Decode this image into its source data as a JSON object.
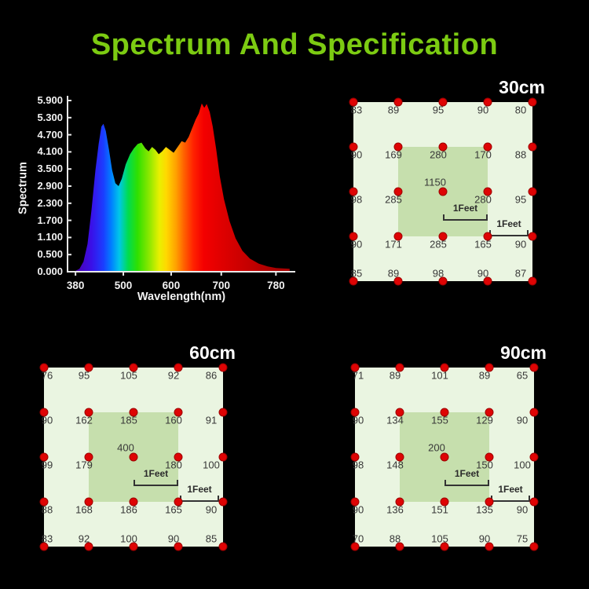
{
  "page_title": "Spectrum And Specification",
  "colors": {
    "background": "#000000",
    "title_green": "#7ccb12",
    "map_bg": "#eaf5e1",
    "map_inner": "#c6dfad",
    "dot_red": "#de0404",
    "number_text": "#383838",
    "axis_text": "#f2f2f2"
  },
  "chart_data": [
    {
      "type": "area",
      "title": "LED spectrum",
      "ylabel": "Spectrum",
      "xlabel": "Wavelength(nm)",
      "x_ticks": [
        380,
        500,
        600,
        700,
        780
      ],
      "y_ticks": [
        "5.900",
        "5.300",
        "4.700",
        "4.100",
        "3.500",
        "2.900",
        "2.300",
        "1.700",
        "1.100",
        "0.500",
        "0.000"
      ],
      "ylim": [
        0,
        5.9
      ],
      "xlim": [
        380,
        780
      ],
      "grid": false,
      "points": [
        [
          380,
          0.03
        ],
        [
          390,
          0.1
        ],
        [
          400,
          0.35
        ],
        [
          410,
          0.95
        ],
        [
          420,
          2.1
        ],
        [
          430,
          3.5
        ],
        [
          438,
          4.4
        ],
        [
          445,
          5.0
        ],
        [
          450,
          5.1
        ],
        [
          456,
          4.85
        ],
        [
          464,
          4.2
        ],
        [
          472,
          3.5
        ],
        [
          480,
          3.05
        ],
        [
          488,
          2.95
        ],
        [
          496,
          3.2
        ],
        [
          505,
          3.7
        ],
        [
          514,
          4.05
        ],
        [
          522,
          4.25
        ],
        [
          530,
          4.4
        ],
        [
          538,
          4.45
        ],
        [
          546,
          4.25
        ],
        [
          553,
          4.15
        ],
        [
          560,
          4.3
        ],
        [
          567,
          4.2
        ],
        [
          574,
          4.05
        ],
        [
          581,
          4.15
        ],
        [
          589,
          4.3
        ],
        [
          597,
          4.2
        ],
        [
          605,
          4.1
        ],
        [
          613,
          4.3
        ],
        [
          621,
          4.5
        ],
        [
          628,
          4.45
        ],
        [
          635,
          4.65
        ],
        [
          642,
          4.95
        ],
        [
          649,
          5.25
        ],
        [
          655,
          5.45
        ],
        [
          661,
          5.8
        ],
        [
          666,
          5.65
        ],
        [
          671,
          5.78
        ],
        [
          677,
          5.5
        ],
        [
          683,
          5.0
        ],
        [
          690,
          4.2
        ],
        [
          697,
          3.3
        ],
        [
          704,
          2.5
        ],
        [
          712,
          1.75
        ],
        [
          721,
          1.15
        ],
        [
          731,
          0.72
        ],
        [
          742,
          0.45
        ],
        [
          755,
          0.28
        ],
        [
          768,
          0.18
        ],
        [
          780,
          0.13
        ],
        [
          800,
          0.1
        ]
      ],
      "gradient_stops": [
        [
          380,
          "#4b00b0"
        ],
        [
          420,
          "#3a10e8"
        ],
        [
          450,
          "#1b3dff"
        ],
        [
          470,
          "#0080ff"
        ],
        [
          490,
          "#00c8e8"
        ],
        [
          510,
          "#00dc50"
        ],
        [
          530,
          "#30e000"
        ],
        [
          555,
          "#90e800"
        ],
        [
          575,
          "#e8f000"
        ],
        [
          590,
          "#ffd800"
        ],
        [
          610,
          "#ffa000"
        ],
        [
          625,
          "#ff6400"
        ],
        [
          645,
          "#ff2000"
        ],
        [
          665,
          "#f40000"
        ],
        [
          700,
          "#e00000"
        ],
        [
          780,
          "#a80000"
        ]
      ]
    },
    {
      "type": "heatmap",
      "title": "30cm",
      "unit_label": "1Feet",
      "values": [
        [
          83,
          89,
          95,
          90,
          80
        ],
        [
          90,
          169,
          280,
          170,
          88
        ],
        [
          98,
          285,
          1150,
          280,
          95
        ],
        [
          90,
          171,
          285,
          165,
          90
        ],
        [
          85,
          89,
          98,
          90,
          87
        ]
      ]
    },
    {
      "type": "heatmap",
      "title": "60cm",
      "unit_label": "1Feet",
      "values": [
        [
          76,
          95,
          105,
          92,
          86
        ],
        [
          90,
          162,
          185,
          160,
          91
        ],
        [
          99,
          179,
          400,
          180,
          100
        ],
        [
          88,
          168,
          186,
          165,
          90
        ],
        [
          83,
          92,
          100,
          90,
          85
        ]
      ]
    },
    {
      "type": "heatmap",
      "title": "90cm",
      "unit_label": "1Feet",
      "values": [
        [
          71,
          89,
          101,
          89,
          65
        ],
        [
          90,
          134,
          155,
          129,
          90
        ],
        [
          98,
          148,
          200,
          150,
          100
        ],
        [
          90,
          136,
          151,
          135,
          90
        ],
        [
          70,
          88,
          105,
          90,
          75
        ]
      ]
    }
  ]
}
